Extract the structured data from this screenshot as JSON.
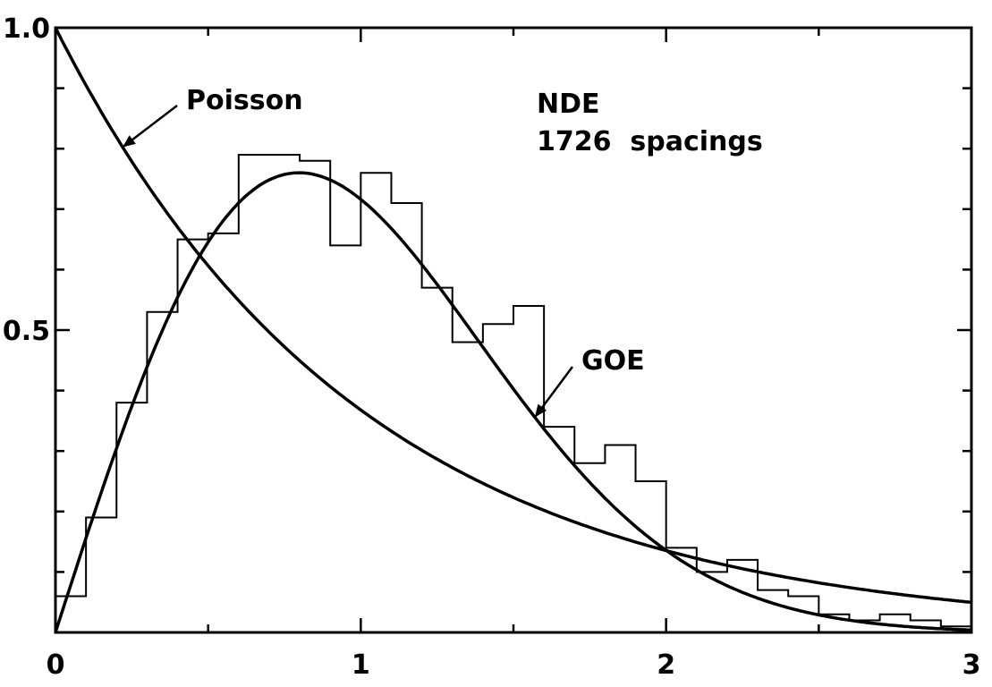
{
  "chart_data": {
    "type": "line",
    "title": "",
    "xlabel": "",
    "ylabel": "",
    "xlim": [
      0,
      3
    ],
    "ylim": [
      0,
      1.0
    ],
    "x_ticks": [
      0,
      1,
      2,
      3
    ],
    "x_tick_labels": [
      "0",
      "1",
      "2",
      "3"
    ],
    "y_ticks": [
      0.5,
      1.0
    ],
    "y_tick_labels": [
      "0.5",
      "1.0"
    ],
    "grid": false,
    "series": [
      {
        "name": "Poisson",
        "kind": "curve",
        "x": [
          0,
          0.1,
          0.2,
          0.3,
          0.4,
          0.5,
          0.6,
          0.7,
          0.8,
          0.9,
          1.0,
          1.2,
          1.4,
          1.6,
          1.8,
          2.0,
          2.2,
          2.4,
          2.6,
          2.8,
          3.0
        ],
        "y": [
          1.0,
          0.905,
          0.819,
          0.741,
          0.67,
          0.607,
          0.549,
          0.497,
          0.449,
          0.407,
          0.368,
          0.301,
          0.247,
          0.202,
          0.165,
          0.135,
          0.111,
          0.091,
          0.074,
          0.061,
          0.05
        ]
      },
      {
        "name": "GOE",
        "kind": "curve",
        "x": [
          0,
          0.1,
          0.2,
          0.3,
          0.4,
          0.5,
          0.6,
          0.7,
          0.8,
          0.9,
          1.0,
          1.1,
          1.2,
          1.3,
          1.4,
          1.5,
          1.6,
          1.7,
          1.8,
          1.9,
          2.0,
          2.2,
          2.4,
          2.6,
          2.8,
          3.0
        ],
        "y": [
          0.0,
          0.156,
          0.303,
          0.435,
          0.547,
          0.642,
          0.708,
          0.751,
          0.77,
          0.766,
          0.742,
          0.7,
          0.646,
          0.583,
          0.516,
          0.449,
          0.383,
          0.322,
          0.266,
          0.216,
          0.172,
          0.106,
          0.062,
          0.034,
          0.017,
          0.008
        ]
      },
      {
        "name": "NDE 1726 spacings",
        "kind": "histogram",
        "bin_edges": [
          0,
          0.1,
          0.2,
          0.3,
          0.4,
          0.5,
          0.6,
          0.7,
          0.8,
          0.9,
          1.0,
          1.1,
          1.2,
          1.3,
          1.4,
          1.5,
          1.6,
          1.7,
          1.8,
          1.9,
          2.0,
          2.1,
          2.2,
          2.3,
          2.4,
          2.5,
          2.6,
          2.7,
          2.8,
          2.9,
          3.0
        ],
        "values": [
          0.06,
          0.19,
          0.38,
          0.53,
          0.65,
          0.66,
          0.79,
          0.79,
          0.78,
          0.64,
          0.76,
          0.71,
          0.57,
          0.48,
          0.51,
          0.54,
          0.34,
          0.28,
          0.31,
          0.25,
          0.14,
          0.1,
          0.12,
          0.07,
          0.06,
          0.03,
          0.02,
          0.03,
          0.02,
          0.01
        ]
      }
    ],
    "annotations": [
      {
        "text": "Poisson",
        "series": "Poisson"
      },
      {
        "text": "GOE",
        "series": "GOE"
      },
      {
        "text": "NDE"
      },
      {
        "text": "1726  spacings"
      }
    ]
  },
  "colors": {
    "ink": "#000000",
    "background": "#ffffff"
  }
}
